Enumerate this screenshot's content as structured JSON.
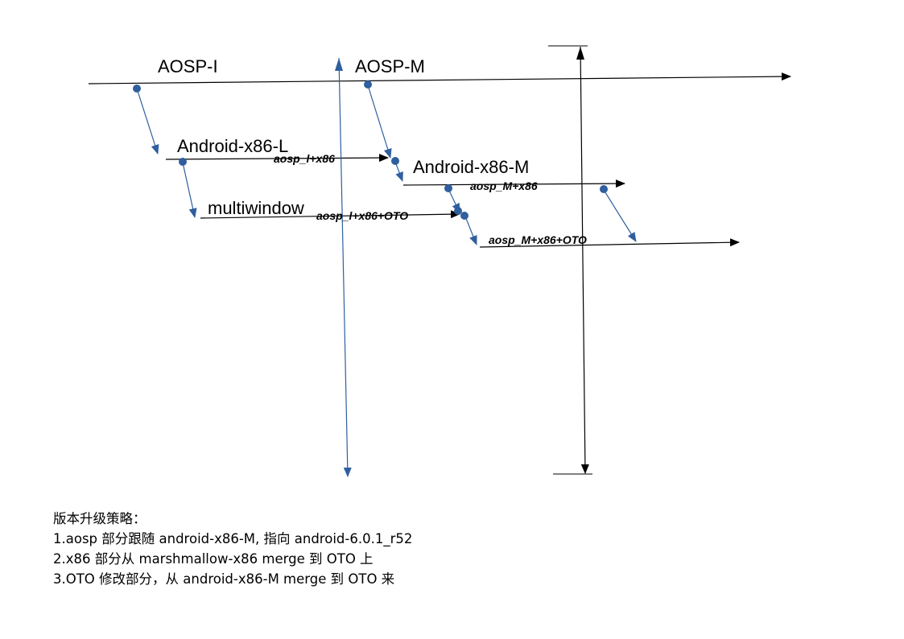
{
  "diagram": {
    "branches": {
      "aosp_l": "AOSP-I",
      "aosp_m": "AOSP-M",
      "android_x86_l": "Android-x86-L",
      "android_x86_m": "Android-x86-M",
      "multiwindow": "multiwindow"
    },
    "merges": {
      "aosp_l_x86": "aosp_l+x86",
      "aosp_m_x86": "aosp_M+x86",
      "aosp_l_x86_oto": "aosp_l+x86+OTO",
      "aosp_m_x86_oto": "aosp_M+x86+OTO"
    },
    "colors": {
      "line": "#000000",
      "accent": "#2f5f9e"
    }
  },
  "notes": {
    "title": "版本升级策略：",
    "items": [
      "1.aosp 部分跟随 android-x86-M, 指向 android-6.0.1_r52",
      "2.x86 部分从 marshmallow-x86 merge 到 OTO 上",
      "3.OTO 修改部分，从 android-x86-M merge 到 OTO 来"
    ]
  }
}
